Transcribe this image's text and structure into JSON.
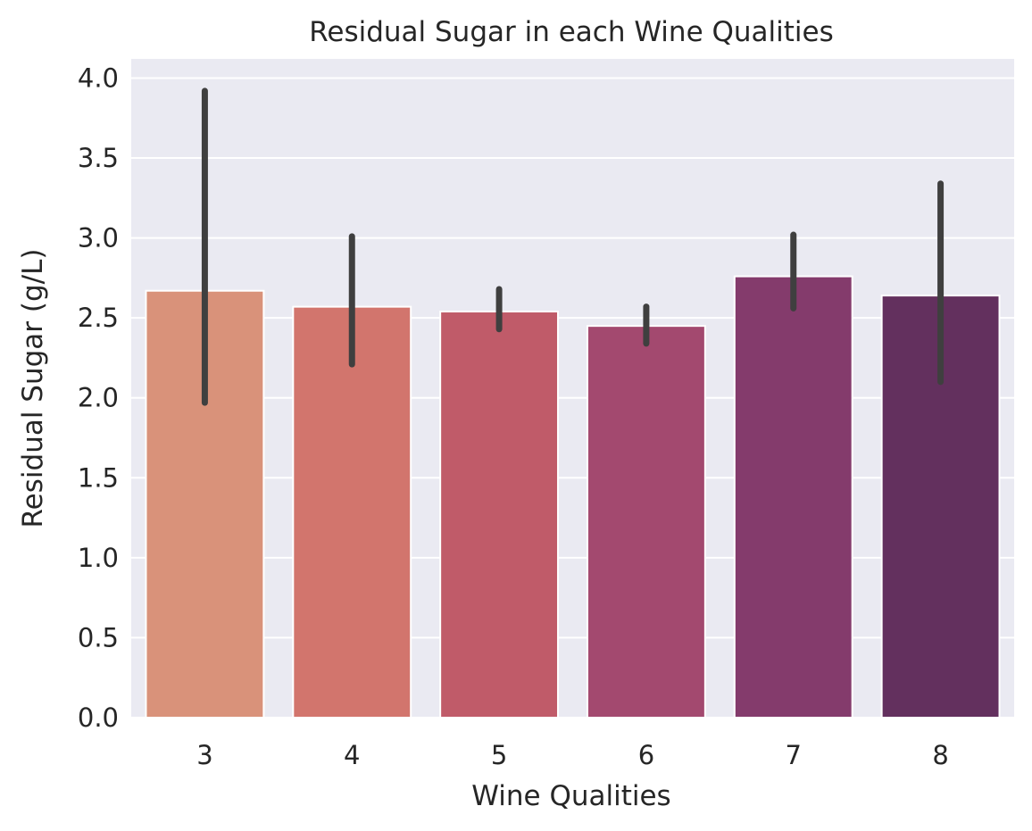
{
  "chart_data": {
    "type": "bar",
    "title": "Residual Sugar in each Wine Qualities",
    "xlabel": "Wine Qualities",
    "ylabel": "Residual Sugar (g/L)",
    "categories": [
      "3",
      "4",
      "5",
      "6",
      "7",
      "8"
    ],
    "values": [
      2.67,
      2.57,
      2.54,
      2.45,
      2.76,
      2.64
    ],
    "error_low": [
      1.97,
      2.21,
      2.43,
      2.34,
      2.56,
      2.1
    ],
    "error_high": [
      3.92,
      3.01,
      2.68,
      2.57,
      3.02,
      3.34
    ],
    "ylim": [
      0,
      4.12
    ],
    "yticks": [
      "0.0",
      "0.5",
      "1.0",
      "1.5",
      "2.0",
      "2.5",
      "3.0",
      "3.5",
      "4.0"
    ],
    "grid": true,
    "colors": [
      "#d9927a",
      "#d2756d",
      "#c05b69",
      "#a3496f",
      "#843b6c",
      "#63305e"
    ],
    "background": "#eaeaf2",
    "error_color": "#3f3f3f"
  }
}
